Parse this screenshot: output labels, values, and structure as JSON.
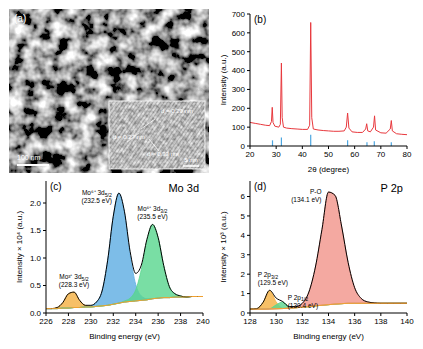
{
  "image": {
    "panel_label": "(a)",
    "scale_bar": "100 nm",
    "inset": {
      "scale_bar": "5 nm",
      "annotations": [
        "d = 0.27 nm",
        "d = 0.20 nm",
        "d = 0.33 nm"
      ]
    }
  },
  "chart_data": [
    {
      "type": "line",
      "panel_label": "(b)",
      "x_label": "2θ (degree)",
      "y_label": "Intensity (a.u.)",
      "x": [
        20,
        22,
        24,
        26,
        27.5,
        28.2,
        28.5,
        28.8,
        29.5,
        31,
        31.6,
        32,
        32.3,
        32.8,
        34,
        36,
        38,
        40,
        42,
        42.8,
        43.2,
        43.6,
        44.2,
        46,
        48,
        50,
        52,
        54,
        56,
        56.8,
        57.3,
        57.8,
        59,
        61,
        63,
        64.2,
        64.6,
        65,
        66,
        67.2,
        67.6,
        68,
        70,
        72,
        73.6,
        74,
        74.4,
        76,
        78,
        80
      ],
      "values": [
        125,
        120,
        115,
        110,
        108,
        130,
        205,
        125,
        105,
        100,
        115,
        440,
        150,
        100,
        95,
        92,
        90,
        88,
        88,
        110,
        655,
        150,
        90,
        85,
        82,
        80,
        78,
        78,
        80,
        100,
        175,
        95,
        75,
        72,
        72,
        90,
        118,
        80,
        75,
        100,
        160,
        85,
        70,
        68,
        90,
        135,
        80,
        65,
        62,
        60
      ],
      "color": "#e8383d",
      "reference": {
        "x": [
          28.6,
          32.0,
          43.2,
          57.3,
          64.7,
          67.5,
          74.0
        ],
        "values": [
          30,
          45,
          60,
          30,
          20,
          25,
          20
        ],
        "color": "#4da6e0"
      },
      "xlim": [
        20,
        80
      ],
      "xticks": [
        20,
        30,
        40,
        50,
        60,
        70,
        80
      ],
      "ylim": [
        0,
        700
      ],
      "yticks": [
        0,
        100,
        200,
        300,
        400,
        500,
        600,
        700
      ],
      "grid": false
    },
    {
      "type": "line",
      "panel_label": "(c)",
      "title": "Mo 3d",
      "x_label": "Binding energy (eV)",
      "y_label": "Intensity × 10⁴ (a.u.)",
      "stacked": true,
      "x": [
        226,
        226.5,
        227,
        227.5,
        228,
        228.5,
        229,
        229.5,
        230,
        230.5,
        231,
        231.5,
        232,
        232.5,
        233,
        233.5,
        234,
        234.5,
        235,
        235.5,
        236,
        236.5,
        237,
        237.5,
        238,
        238.5,
        239,
        239.5,
        240
      ],
      "series": [
        {
          "type": "line",
          "color": "#000000",
          "values": [
            0.08,
            0.08,
            0.1,
            0.19,
            0.35,
            0.38,
            0.23,
            0.14,
            0.14,
            0.2,
            0.4,
            0.96,
            1.76,
            2.18,
            1.84,
            1.12,
            0.72,
            0.87,
            1.34,
            1.61,
            1.37,
            0.86,
            0.48,
            0.35,
            0.31,
            0.29,
            0.3,
            0.3,
            0.3
          ]
        },
        {
          "type": "line",
          "color": "#f0a030",
          "values": [
            0.08,
            0.08,
            0.08,
            0.09,
            0.09,
            0.1,
            0.1,
            0.11,
            0.11,
            0.12,
            0.13,
            0.14,
            0.16,
            0.18,
            0.2,
            0.21,
            0.22,
            0.23,
            0.24,
            0.26,
            0.27,
            0.28,
            0.28,
            0.29,
            0.29,
            0.29,
            0.3,
            0.3,
            0.3
          ]
        },
        {
          "type": "area",
          "name": "Mo³⁺ 3d5/2",
          "label": "(228.3 eV)",
          "color": "#f5b041",
          "values": [
            0,
            0,
            0.02,
            0.1,
            0.26,
            0.28,
            0.13,
            0.03,
            0.01,
            0,
            0,
            0,
            0,
            0,
            0,
            0,
            0,
            0,
            0,
            0,
            0,
            0,
            0,
            0,
            0,
            0,
            0,
            0,
            0
          ]
        },
        {
          "type": "area",
          "name": "Mo⁶⁺ 3d5/2",
          "label": "(232.5 eV)",
          "color": "#5dade2",
          "values": [
            0,
            0,
            0,
            0,
            0,
            0,
            0,
            0,
            0.02,
            0.08,
            0.27,
            0.82,
            1.6,
            2.0,
            1.62,
            0.85,
            0.3,
            0.08,
            0.02,
            0,
            0,
            0,
            0,
            0,
            0,
            0,
            0,
            0,
            0
          ]
        },
        {
          "type": "area",
          "name": "Mo⁶⁺ 3d3/2",
          "label": "(235.5 eV)",
          "color": "#58d68d",
          "values": [
            0,
            0,
            0,
            0,
            0,
            0,
            0,
            0,
            0,
            0,
            0,
            0,
            0,
            0,
            0.02,
            0.06,
            0.2,
            0.56,
            1.08,
            1.35,
            1.1,
            0.58,
            0.2,
            0.06,
            0.02,
            0,
            0,
            0,
            0
          ]
        }
      ],
      "xlim": [
        226,
        240
      ],
      "xticks": [
        226,
        228,
        230,
        232,
        234,
        236,
        238,
        240
      ],
      "ylim": [
        0,
        2.4
      ],
      "yticks": [
        {
          "value": 0,
          "label": "0.0"
        },
        0.5,
        {
          "value": 1,
          "label": "1.0"
        },
        1.5,
        {
          "value": 2,
          "label": "2.0"
        }
      ],
      "grid": false
    },
    {
      "type": "line",
      "panel_label": "(d)",
      "title": "P 2p",
      "x_label": "Binding energy (eV)",
      "y_label": "Intensity × 10³ (a.u.)",
      "stacked": true,
      "x": [
        128,
        128.5,
        129,
        129.5,
        130,
        130.5,
        131,
        131.5,
        132,
        132.5,
        133,
        133.5,
        134,
        134.5,
        135,
        135.5,
        136,
        136.5,
        137,
        137.5,
        138,
        138.5,
        139,
        139.5,
        140
      ],
      "series": [
        {
          "type": "line",
          "color": "#000000",
          "values": [
            0.2,
            0.22,
            0.55,
            1.17,
            0.77,
            0.59,
            0.33,
            0.33,
            0.5,
            1.08,
            2.37,
            4.3,
            6.23,
            6.06,
            4.48,
            2.6,
            1.3,
            0.75,
            0.57,
            0.52,
            0.5,
            0.5,
            0.5,
            0.5,
            0.5
          ]
        },
        {
          "type": "line",
          "color": "#f0a030",
          "values": [
            0.2,
            0.2,
            0.2,
            0.21,
            0.22,
            0.23,
            0.25,
            0.27,
            0.3,
            0.33,
            0.37,
            0.4,
            0.43,
            0.46,
            0.48,
            0.5,
            0.5,
            0.5,
            0.5,
            0.5,
            0.5,
            0.5,
            0.5,
            0.5,
            0.5
          ]
        },
        {
          "type": "area",
          "name": "P 2p3/2",
          "label": "(129.5 eV)",
          "color": "#f5b041",
          "values": [
            0,
            0.02,
            0.35,
            0.95,
            0.35,
            0.02,
            0,
            0,
            0,
            0,
            0,
            0,
            0,
            0,
            0,
            0,
            0,
            0,
            0,
            0,
            0,
            0,
            0,
            0,
            0
          ]
        },
        {
          "type": "area",
          "name": "P 2p1/2",
          "label": "(130.4 eV)",
          "color": "#58d68d",
          "values": [
            0,
            0,
            0,
            0.01,
            0.2,
            0.34,
            0.08,
            0.01,
            0,
            0,
            0,
            0,
            0,
            0,
            0,
            0,
            0,
            0,
            0,
            0,
            0,
            0,
            0,
            0,
            0
          ]
        },
        {
          "type": "area",
          "name": "P-O",
          "label": "(134.1 eV)",
          "color": "#f1948a",
          "values": [
            0,
            0,
            0,
            0,
            0,
            0,
            0,
            0.05,
            0.2,
            0.75,
            2.0,
            3.9,
            5.8,
            5.6,
            4.0,
            2.1,
            0.8,
            0.25,
            0.07,
            0.02,
            0,
            0,
            0,
            0,
            0
          ]
        }
      ],
      "xlim": [
        128,
        140
      ],
      "xticks": [
        128,
        130,
        132,
        134,
        136,
        138,
        140
      ],
      "ylim": [
        0,
        6.8
      ],
      "yticks": [
        0,
        1,
        2,
        3,
        4,
        5,
        6
      ],
      "grid": false
    }
  ]
}
